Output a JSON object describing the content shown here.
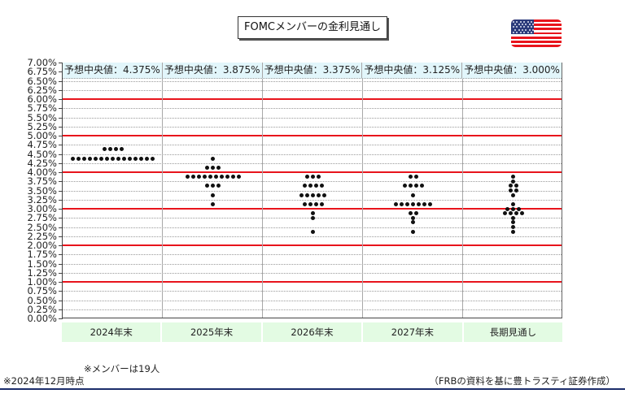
{
  "title": "FOMCメンバーの金利見通し",
  "flag": {
    "icon": "us-flag-icon",
    "colors": {
      "red": "#e8141c",
      "white": "#ffffff",
      "blue": "#2b3a7a"
    }
  },
  "notes": {
    "members": "※メンバーは19人",
    "as_of": "※2024年12月時点",
    "source": "（FRBの資料を基に豊トラスティ証券作成）"
  },
  "colors": {
    "median_band": "#e2f6fb",
    "category_band": "#e3fbe3",
    "whole_percent_line": "#e8141c",
    "dot": "#111111",
    "bottom_rule": "#1c2d6b"
  },
  "chart_data": {
    "type": "scatter",
    "subtype": "dot-plot",
    "title": "FOMCメンバーの金利見通し",
    "xlabel": "",
    "ylabel": "",
    "ylim": [
      0,
      7
    ],
    "y_tick_step": 0.25,
    "y_ticks": [
      "0.00%",
      "0.25%",
      "0.50%",
      "0.75%",
      "1.00%",
      "1.25%",
      "1.50%",
      "1.75%",
      "2.00%",
      "2.25%",
      "2.50%",
      "2.75%",
      "3.00%",
      "3.25%",
      "3.50%",
      "3.75%",
      "4.00%",
      "4.25%",
      "4.50%",
      "4.75%",
      "5.00%",
      "5.25%",
      "5.50%",
      "5.75%",
      "6.00%",
      "6.25%",
      "6.50%",
      "6.75%",
      "7.00%"
    ],
    "highlight_lines": [
      1,
      2,
      3,
      4,
      5,
      6
    ],
    "grid": true,
    "categories": [
      "2024年末",
      "2025年末",
      "2026年末",
      "2027年末",
      "長期見通し"
    ],
    "median_label_prefix": "予想中央値：",
    "medians": [
      "4.375%",
      "3.875%",
      "3.375%",
      "3.125%",
      "3.000%"
    ],
    "series": [
      {
        "name": "2024年末",
        "points": [
          {
            "rate": 4.625,
            "count": 4
          },
          {
            "rate": 4.375,
            "count": 15
          }
        ]
      },
      {
        "name": "2025年末",
        "points": [
          {
            "rate": 4.375,
            "count": 1
          },
          {
            "rate": 4.125,
            "count": 3
          },
          {
            "rate": 3.875,
            "count": 10
          },
          {
            "rate": 3.625,
            "count": 3
          },
          {
            "rate": 3.375,
            "count": 1
          },
          {
            "rate": 3.125,
            "count": 1
          }
        ]
      },
      {
        "name": "2026年末",
        "points": [
          {
            "rate": 3.875,
            "count": 3
          },
          {
            "rate": 3.625,
            "count": 4
          },
          {
            "rate": 3.375,
            "count": 5
          },
          {
            "rate": 3.125,
            "count": 4
          },
          {
            "rate": 2.875,
            "count": 1
          },
          {
            "rate": 2.75,
            "count": 1
          },
          {
            "rate": 2.375,
            "count": 1
          }
        ]
      },
      {
        "name": "2027年末",
        "points": [
          {
            "rate": 3.875,
            "count": 2
          },
          {
            "rate": 3.625,
            "count": 4
          },
          {
            "rate": 3.375,
            "count": 1
          },
          {
            "rate": 3.125,
            "count": 7
          },
          {
            "rate": 2.875,
            "count": 2
          },
          {
            "rate": 2.75,
            "count": 1
          },
          {
            "rate": 2.625,
            "count": 1
          },
          {
            "rate": 2.375,
            "count": 1
          }
        ]
      },
      {
        "name": "長期見通し",
        "points": [
          {
            "rate": 3.875,
            "count": 1
          },
          {
            "rate": 3.75,
            "count": 1
          },
          {
            "rate": 3.625,
            "count": 2
          },
          {
            "rate": 3.5,
            "count": 2
          },
          {
            "rate": 3.375,
            "count": 1
          },
          {
            "rate": 3.125,
            "count": 1
          },
          {
            "rate": 3.0,
            "count": 3
          },
          {
            "rate": 2.875,
            "count": 4
          },
          {
            "rate": 2.75,
            "count": 1
          },
          {
            "rate": 2.625,
            "count": 1
          },
          {
            "rate": 2.5,
            "count": 1
          },
          {
            "rate": 2.375,
            "count": 1
          }
        ]
      }
    ],
    "total_members": 19
  }
}
